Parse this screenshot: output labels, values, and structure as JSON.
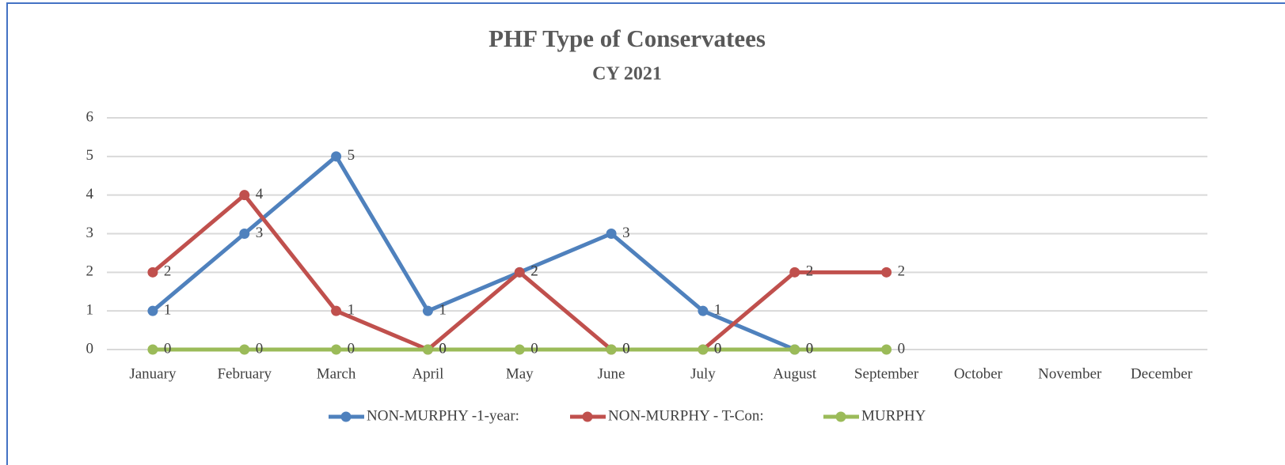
{
  "chart_data": {
    "type": "line",
    "title": "PHF Type of Conservatees",
    "subtitle": "CY 2021",
    "categories": [
      "January",
      "February",
      "March",
      "April",
      "May",
      "June",
      "July",
      "August",
      "September",
      "October",
      "November",
      "December"
    ],
    "series": [
      {
        "name": "NON-MURPHY -1-year:",
        "color": "#4f81bd",
        "values": [
          1,
          3,
          5,
          1,
          2,
          3,
          1,
          0,
          null,
          null,
          null,
          null
        ]
      },
      {
        "name": "NON-MURPHY - T-Con:",
        "color": "#c0504d",
        "values": [
          2,
          4,
          1,
          0,
          2,
          0,
          0,
          2,
          2,
          null,
          null,
          null
        ]
      },
      {
        "name": "MURPHY",
        "color": "#9bbb59",
        "values": [
          0,
          0,
          0,
          0,
          0,
          0,
          0,
          0,
          0,
          null,
          null,
          null
        ]
      }
    ],
    "ylim": [
      0,
      6
    ],
    "yticks": [
      0,
      1,
      2,
      3,
      4,
      5,
      6
    ],
    "grid": true,
    "legend": "bottom"
  }
}
